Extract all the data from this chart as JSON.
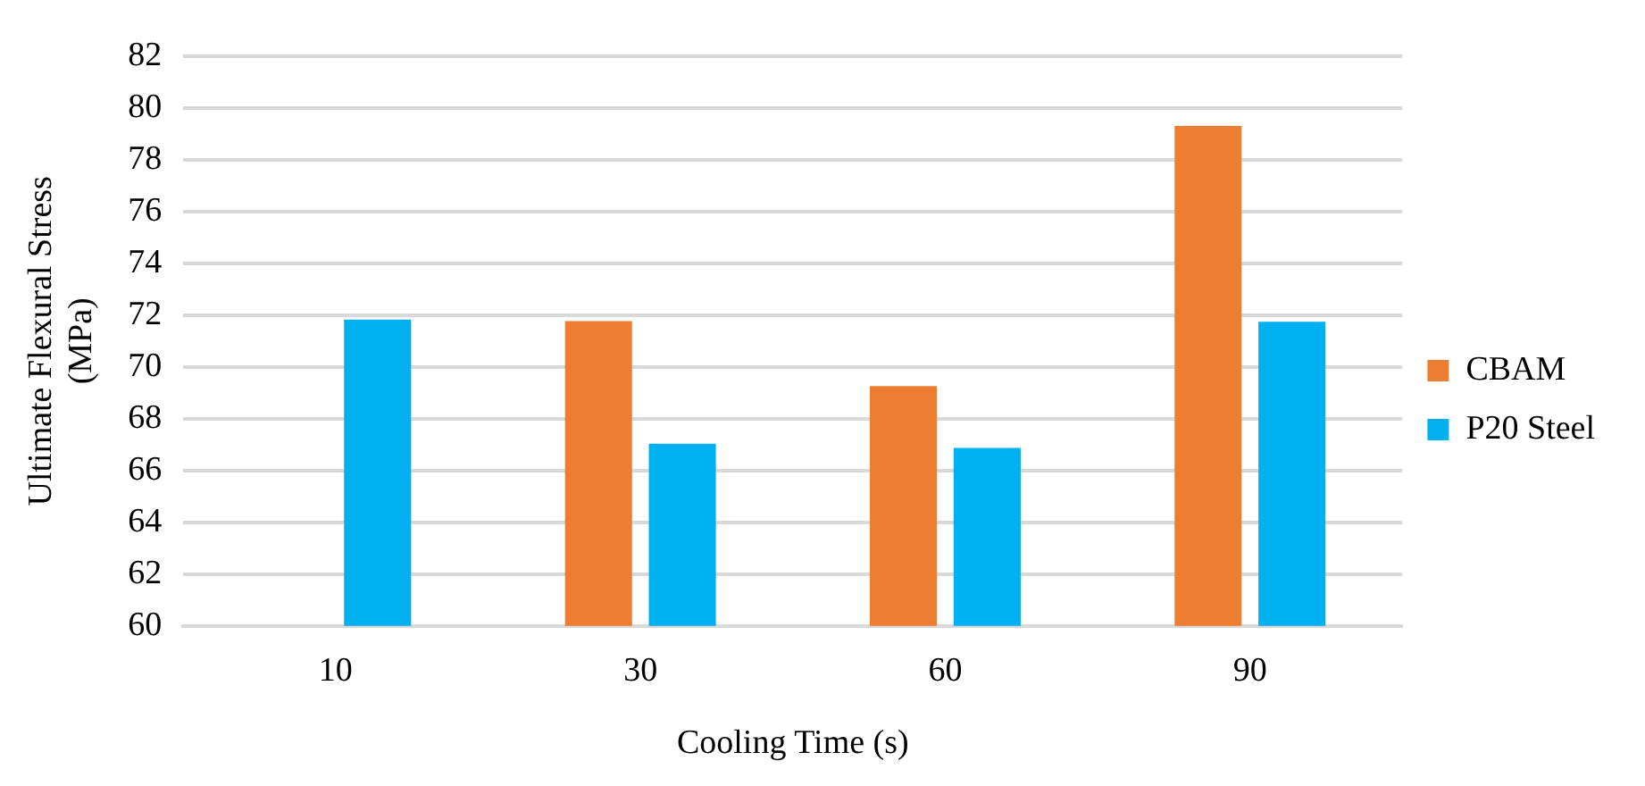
{
  "chart_data": {
    "type": "bar",
    "xlabel": "Cooling Time (s)",
    "ylabel": "Ultimate Flexural Stress (MPa)",
    "categories": [
      "10",
      "30",
      "60",
      "90"
    ],
    "series": [
      {
        "name": "CBAM",
        "color": "#ed7d31",
        "values": [
          null,
          71.77,
          69.26,
          79.3
        ]
      },
      {
        "name": "P20 Steel",
        "color": "#00b0f0",
        "values": [
          71.83,
          67.04,
          66.87,
          71.74
        ]
      }
    ],
    "ylim": [
      60,
      82
    ],
    "yticks": [
      60,
      62,
      64,
      66,
      68,
      70,
      72,
      74,
      76,
      78,
      80,
      82
    ],
    "grid": "y",
    "legend": "right"
  }
}
